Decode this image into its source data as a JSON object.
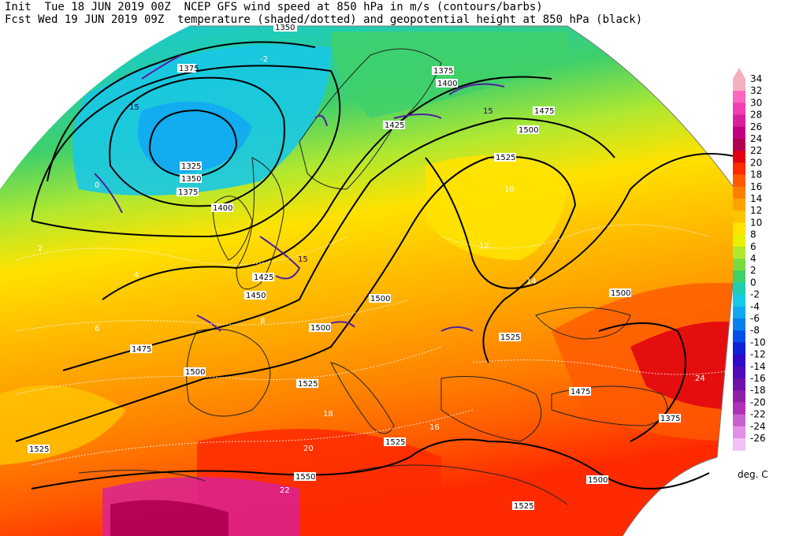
{
  "header": {
    "line1": "Init  Tue 18 JUN 2019 00Z  NCEP GFS wind speed at 850 hPa in m/s (contours/barbs)",
    "line2": "Fcst Wed 19 JUN 2019 09Z  temperature (shaded/dotted) and geopotential height at 850 hPa (black)"
  },
  "legend": {
    "unit": "deg. C",
    "levels": [
      "34",
      "32",
      "30",
      "28",
      "26",
      "24",
      "22",
      "20",
      "18",
      "16",
      "14",
      "12",
      "10",
      "8",
      "6",
      "4",
      "2",
      "0",
      "-2",
      "-4",
      "-6",
      "-8",
      "-10",
      "-12",
      "-14",
      "-16",
      "-18",
      "-20",
      "-22",
      "-24",
      "-26"
    ],
    "colors": [
      "#f4b0c0",
      "#ff66c0",
      "#f040b0",
      "#d8209c",
      "#c00080",
      "#b00050",
      "#e00010",
      "#ff2a00",
      "#ff5a00",
      "#ff7e00",
      "#ffa200",
      "#ffc400",
      "#ffe200",
      "#e8f000",
      "#b0e830",
      "#78dc40",
      "#40d06a",
      "#22ccb0",
      "#18c8e6",
      "#12a8f2",
      "#0a80f0",
      "#0050e8",
      "#1020d8",
      "#3008c8",
      "#5008b8",
      "#7010a8",
      "#9020a8",
      "#b030b8",
      "#c860d0",
      "#e090e8",
      "#f0c0f6"
    ]
  },
  "map": {
    "height_labels": [
      "1350",
      "1375",
      "1325",
      "1350",
      "1375",
      "1400",
      "1425",
      "1450",
      "1375",
      "1400",
      "1425",
      "1475",
      "1500",
      "1525",
      "1500",
      "1500",
      "1525",
      "1500",
      "1475",
      "1500",
      "1525",
      "1525",
      "1525",
      "1475",
      "1375",
      "1550",
      "1500",
      "1525",
      "1475",
      "1500"
    ],
    "wind_labels": [
      "15",
      "15",
      "15",
      "15",
      "15",
      "15",
      "15"
    ],
    "temp_labels": [
      "-2",
      "0",
      "2",
      "4",
      "6",
      "8",
      "10",
      "12",
      "14",
      "16",
      "18",
      "20",
      "22",
      "24",
      "12",
      "14",
      "16",
      "18",
      "10",
      "8",
      "6",
      "14",
      "16",
      "18",
      "20",
      "22",
      "24",
      "16",
      "14",
      "12"
    ]
  }
}
